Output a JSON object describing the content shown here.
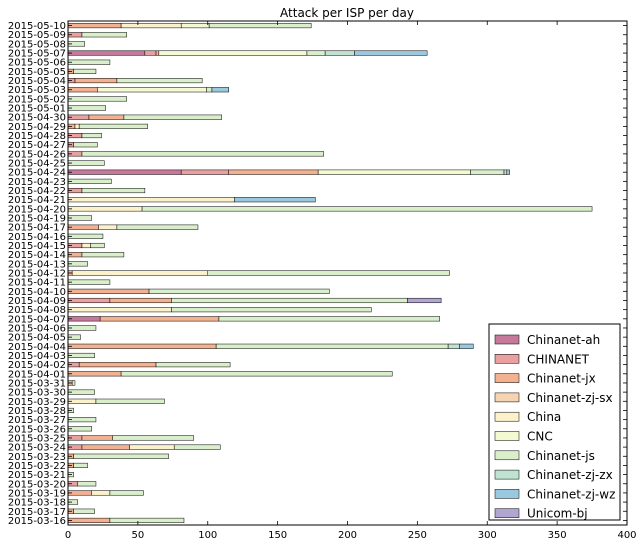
{
  "chart_data": {
    "type": "bar",
    "orientation": "horizontal",
    "stacked": true,
    "title": "Attack per ISP per day",
    "xlabel": "",
    "ylabel": "",
    "xlim": [
      0,
      400
    ],
    "xticks": [
      "0",
      "50",
      "100",
      "150",
      "200",
      "250",
      "300",
      "350",
      "400"
    ],
    "grid": false,
    "legend_position": "lower-right",
    "categories": [
      "2015-05-10",
      "2015-05-09",
      "2015-05-08",
      "2015-05-07",
      "2015-05-06",
      "2015-05-05",
      "2015-05-04",
      "2015-05-03",
      "2015-05-02",
      "2015-05-01",
      "2015-04-30",
      "2015-04-29",
      "2015-04-28",
      "2015-04-27",
      "2015-04-26",
      "2015-04-25",
      "2015-04-24",
      "2015-04-23",
      "2015-04-22",
      "2015-04-21",
      "2015-04-20",
      "2015-04-19",
      "2015-04-17",
      "2015-04-16",
      "2015-04-15",
      "2015-04-14",
      "2015-04-13",
      "2015-04-12",
      "2015-04-11",
      "2015-04-10",
      "2015-04-09",
      "2015-04-08",
      "2015-04-07",
      "2015-04-06",
      "2015-04-05",
      "2015-04-04",
      "2015-04-03",
      "2015-04-02",
      "2015-04-01",
      "2015-03-31",
      "2015-03-30",
      "2015-03-29",
      "2015-03-28",
      "2015-03-27",
      "2015-03-26",
      "2015-03-25",
      "2015-03-24",
      "2015-03-23",
      "2015-03-22",
      "2015-03-21",
      "2015-03-20",
      "2015-03-19",
      "2015-03-18",
      "2015-03-17",
      "2015-03-16"
    ],
    "series": [
      {
        "name": "Chinanet-ah",
        "color": "#c7799b",
        "values": [
          0,
          0,
          0,
          55,
          0,
          0,
          0,
          0,
          0,
          0,
          0,
          0,
          0,
          0,
          0,
          0,
          81,
          0,
          0,
          0,
          0,
          0,
          0,
          0,
          0,
          0,
          0,
          0,
          0,
          0,
          0,
          0,
          23,
          0,
          0,
          0,
          0,
          0,
          0,
          0,
          0,
          0,
          0,
          0,
          0,
          0,
          0,
          0,
          0,
          0,
          0,
          0,
          0,
          0,
          0
        ]
      },
      {
        "name": "CHINANET",
        "color": "#e8a0a0",
        "values": [
          0,
          10,
          0,
          8,
          0,
          0,
          5,
          0,
          0,
          0,
          15,
          0,
          10,
          4,
          10,
          0,
          34,
          0,
          10,
          0,
          0,
          0,
          0,
          0,
          10,
          0,
          0,
          0,
          0,
          0,
          30,
          0,
          0,
          0,
          0,
          0,
          0,
          8,
          0,
          0,
          0,
          0,
          0,
          0,
          0,
          10,
          10,
          0,
          0,
          0,
          7,
          0,
          0,
          0,
          0
        ]
      },
      {
        "name": "Chinanet-jx",
        "color": "#f2b191",
        "values": [
          38,
          0,
          0,
          2,
          0,
          4,
          30,
          21,
          0,
          0,
          25,
          5,
          0,
          0,
          0,
          0,
          64,
          0,
          0,
          0,
          0,
          0,
          22,
          0,
          0,
          10,
          0,
          3,
          0,
          58,
          44,
          0,
          85,
          0,
          0,
          106,
          0,
          55,
          38,
          3,
          0,
          0,
          0,
          0,
          0,
          22,
          34,
          4,
          4,
          0,
          0,
          17,
          0,
          4,
          30
        ]
      },
      {
        "name": "Chinanet-zj-sx",
        "color": "#f7d4b0",
        "values": [
          0,
          0,
          0,
          0,
          0,
          0,
          0,
          0,
          0,
          0,
          0,
          0,
          0,
          0,
          0,
          0,
          0,
          0,
          0,
          0,
          0,
          0,
          0,
          0,
          0,
          0,
          0,
          0,
          0,
          0,
          0,
          0,
          0,
          0,
          0,
          0,
          0,
          0,
          0,
          0,
          0,
          0,
          0,
          0,
          0,
          0,
          0,
          0,
          0,
          0,
          0,
          0,
          0,
          0,
          0
        ]
      },
      {
        "name": "China",
        "color": "#fbf2cc",
        "values": [
          43,
          0,
          0,
          0,
          0,
          0,
          0,
          0,
          0,
          0,
          0,
          3,
          0,
          0,
          0,
          0,
          0,
          0,
          0,
          119,
          53,
          0,
          13,
          0,
          6,
          0,
          0,
          97,
          0,
          0,
          0,
          74,
          0,
          0,
          0,
          0,
          0,
          0,
          0,
          0,
          0,
          20,
          0,
          0,
          0,
          0,
          32,
          0,
          0,
          0,
          0,
          13,
          0,
          0,
          0
        ]
      },
      {
        "name": "CNC",
        "color": "#f3f9d0",
        "values": [
          20,
          0,
          0,
          106,
          0,
          0,
          0,
          78,
          0,
          0,
          0,
          0,
          0,
          0,
          0,
          0,
          109,
          0,
          0,
          0,
          0,
          0,
          0,
          0,
          0,
          0,
          0,
          0,
          0,
          0,
          0,
          0,
          0,
          0,
          0,
          0,
          0,
          0,
          0,
          0,
          0,
          0,
          0,
          0,
          0,
          0,
          0,
          0,
          0,
          0,
          0,
          0,
          0,
          0,
          0
        ]
      },
      {
        "name": "Chinanet-js",
        "color": "#d9eecb",
        "values": [
          73,
          32,
          12,
          13,
          30,
          16,
          61,
          4,
          42,
          27,
          70,
          49,
          14,
          17,
          173,
          26,
          24,
          31,
          45,
          0,
          322,
          17,
          58,
          25,
          10,
          30,
          14,
          173,
          30,
          129,
          169,
          143,
          158,
          20,
          9,
          166,
          19,
          53,
          194,
          2,
          19,
          49,
          4,
          20,
          17,
          58,
          33,
          68,
          10,
          4,
          13,
          24,
          7,
          15,
          53
        ]
      },
      {
        "name": "Chinanet-zj-zx",
        "color": "#bfe2d1",
        "values": [
          0,
          0,
          0,
          21,
          0,
          0,
          0,
          0,
          0,
          0,
          0,
          0,
          0,
          0,
          0,
          0,
          2,
          0,
          0,
          0,
          0,
          0,
          0,
          0,
          0,
          0,
          0,
          0,
          0,
          0,
          0,
          0,
          0,
          0,
          0,
          8,
          0,
          0,
          0,
          0,
          0,
          0,
          0,
          0,
          0,
          0,
          0,
          0,
          0,
          0,
          0,
          0,
          0,
          0,
          0
        ]
      },
      {
        "name": "Chinanet-zj-wz",
        "color": "#9ac8de",
        "values": [
          0,
          0,
          0,
          52,
          0,
          0,
          0,
          12,
          0,
          0,
          0,
          0,
          0,
          0,
          0,
          0,
          2,
          0,
          0,
          58,
          0,
          0,
          0,
          0,
          0,
          0,
          0,
          0,
          0,
          0,
          0,
          0,
          0,
          0,
          0,
          10,
          0,
          0,
          0,
          0,
          0,
          0,
          0,
          0,
          0,
          0,
          0,
          0,
          0,
          0,
          0,
          0,
          0,
          0,
          0
        ]
      },
      {
        "name": "Unicom-bj",
        "color": "#b1a6d1",
        "values": [
          0,
          0,
          0,
          0,
          0,
          0,
          0,
          0,
          0,
          0,
          0,
          0,
          0,
          0,
          0,
          0,
          0,
          0,
          0,
          0,
          0,
          0,
          0,
          0,
          0,
          0,
          0,
          0,
          0,
          0,
          24,
          0,
          0,
          0,
          0,
          0,
          0,
          0,
          0,
          0,
          0,
          0,
          0,
          0,
          0,
          0,
          0,
          0,
          0,
          0,
          0,
          0,
          0,
          0,
          0
        ]
      }
    ]
  }
}
